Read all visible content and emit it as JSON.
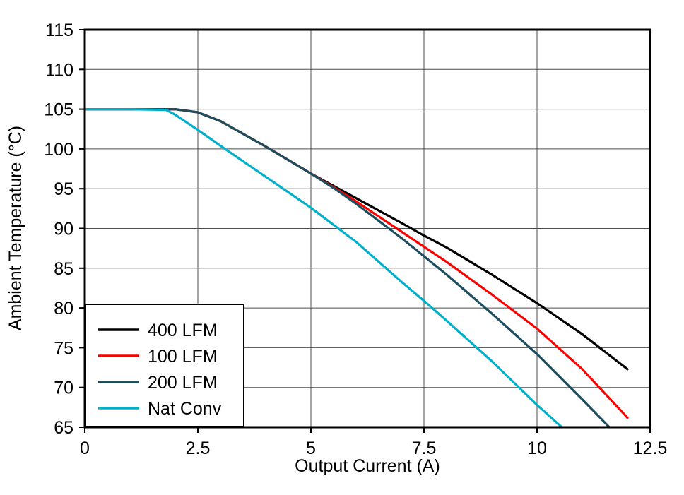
{
  "chart_data": {
    "type": "line",
    "title": "",
    "xlabel": "Output Current (A)",
    "ylabel": "Ambient Temperature (°C)",
    "xlim": [
      0,
      12.5
    ],
    "ylim": [
      65,
      115
    ],
    "xticks": [
      0,
      2.5,
      5,
      7.5,
      10,
      12.5
    ],
    "xtick_labels": [
      "0",
      "2.5",
      "5",
      "7.5",
      "10",
      "12.5"
    ],
    "yticks": [
      65,
      70,
      75,
      80,
      85,
      90,
      95,
      100,
      105,
      110,
      115
    ],
    "grid": true,
    "legend_position": "bottom-left",
    "colors": {
      "grid": "#4d4d4d",
      "frame": "#000000",
      "background": "#ffffff"
    },
    "series": [
      {
        "name": "400 LFM",
        "color": "#000000",
        "points": [
          [
            0,
            105
          ],
          [
            1,
            105
          ],
          [
            2,
            105
          ],
          [
            2.5,
            104.6
          ],
          [
            3,
            103.5
          ],
          [
            4,
            100.3
          ],
          [
            5,
            96.9
          ],
          [
            6,
            93.8
          ],
          [
            7,
            90.7
          ],
          [
            7.5,
            89.1
          ],
          [
            8,
            87.6
          ],
          [
            9,
            84.2
          ],
          [
            10,
            80.6
          ],
          [
            11,
            76.7
          ],
          [
            12,
            72.3
          ]
        ]
      },
      {
        "name": "100 LFM",
        "color": "#ff0000",
        "points": [
          [
            0,
            105
          ],
          [
            1,
            105
          ],
          [
            2,
            105
          ],
          [
            2.5,
            104.6
          ],
          [
            3,
            103.5
          ],
          [
            4,
            100.3
          ],
          [
            5,
            96.9
          ],
          [
            5.5,
            95.2
          ],
          [
            6,
            93.4
          ],
          [
            7,
            89.6
          ],
          [
            7.5,
            87.7
          ],
          [
            8,
            85.8
          ],
          [
            9,
            81.7
          ],
          [
            10,
            77.4
          ],
          [
            11,
            72.3
          ],
          [
            12,
            66.2
          ]
        ]
      },
      {
        "name": "200 LFM",
        "color": "#1d4e60",
        "points": [
          [
            0,
            105
          ],
          [
            1,
            105
          ],
          [
            2,
            105
          ],
          [
            2.5,
            104.6
          ],
          [
            3,
            103.5
          ],
          [
            4,
            100.3
          ],
          [
            5,
            96.9
          ],
          [
            5.5,
            95.1
          ],
          [
            6,
            93.1
          ],
          [
            7,
            88.8
          ],
          [
            7.5,
            86.5
          ],
          [
            8,
            84.2
          ],
          [
            9,
            79.3
          ],
          [
            10,
            74.2
          ],
          [
            11,
            68.5
          ],
          [
            11.6,
            65
          ]
        ]
      },
      {
        "name": "Nat Conv",
        "color": "#00b0ca",
        "points": [
          [
            0,
            105
          ],
          [
            1,
            105
          ],
          [
            1.8,
            104.9
          ],
          [
            2,
            104.3
          ],
          [
            2.5,
            102.4
          ],
          [
            3,
            100.4
          ],
          [
            4,
            96.5
          ],
          [
            5,
            92.6
          ],
          [
            6,
            88.3
          ],
          [
            7,
            83.3
          ],
          [
            7.5,
            80.9
          ],
          [
            8,
            78.4
          ],
          [
            9,
            73.3
          ],
          [
            10,
            67.8
          ],
          [
            10.55,
            65
          ]
        ]
      }
    ]
  }
}
